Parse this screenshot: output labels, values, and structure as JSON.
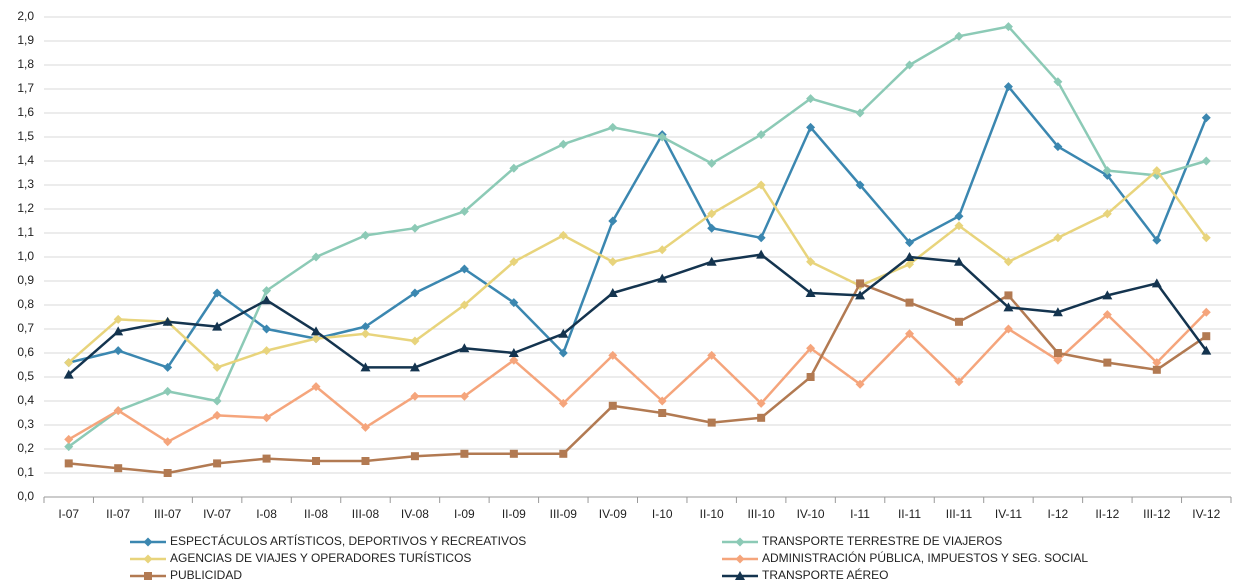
{
  "chart_data": {
    "type": "line",
    "categories": [
      "I-07",
      "II-07",
      "III-07",
      "IV-07",
      "I-08",
      "II-08",
      "III-08",
      "IV-08",
      "I-09",
      "II-09",
      "III-09",
      "IV-09",
      "I-10",
      "II-10",
      "III-10",
      "IV-10",
      "I-11",
      "II-11",
      "III-11",
      "IV-11",
      "I-12",
      "II-12",
      "III-12",
      "IV-12"
    ],
    "series": [
      {
        "name": "ESPECTÁCULOS ARTÍSTICOS, DEPORTIVOS Y RECREATIVOS",
        "color": "#3b87b0",
        "marker": "diamond",
        "values": [
          0.56,
          0.61,
          0.54,
          0.85,
          0.7,
          0.66,
          0.71,
          0.85,
          0.95,
          0.81,
          0.6,
          1.15,
          1.51,
          1.12,
          1.08,
          1.54,
          1.3,
          1.06,
          1.17,
          1.71,
          1.46,
          1.34,
          1.07,
          1.58
        ]
      },
      {
        "name": "TRANSPORTE TERRESTRE DE VIAJEROS",
        "color": "#8ccab6",
        "marker": "diamond",
        "values": [
          0.21,
          0.36,
          0.44,
          0.4,
          0.86,
          1.0,
          1.09,
          1.12,
          1.19,
          1.37,
          1.47,
          1.54,
          1.5,
          1.39,
          1.51,
          1.66,
          1.6,
          1.8,
          1.92,
          1.96,
          1.73,
          1.36,
          1.34,
          1.4
        ]
      },
      {
        "name": "AGENCIAS DE VIAJES Y OPERADORES TURÍSTICOS",
        "color": "#e8d47c",
        "marker": "diamond",
        "values": [
          0.56,
          0.74,
          0.73,
          0.54,
          0.61,
          0.66,
          0.68,
          0.65,
          0.8,
          0.98,
          1.09,
          0.98,
          1.03,
          1.18,
          1.3,
          0.98,
          0.88,
          0.97,
          1.13,
          0.98,
          1.08,
          1.18,
          1.36,
          1.08
        ]
      },
      {
        "name": "ADMINISTRACIÓN PÚBLICA, IMPUESTOS Y SEG. SOCIAL",
        "color": "#f5a57c",
        "marker": "diamond",
        "values": [
          0.24,
          0.36,
          0.23,
          0.34,
          0.33,
          0.46,
          0.29,
          0.42,
          0.42,
          0.57,
          0.39,
          0.59,
          0.4,
          0.59,
          0.39,
          0.62,
          0.47,
          0.68,
          0.48,
          0.7,
          0.57,
          0.76,
          0.56,
          0.77
        ]
      },
      {
        "name": "PUBLICIDAD",
        "color": "#b27a52",
        "marker": "square",
        "values": [
          0.14,
          0.12,
          0.1,
          0.14,
          0.16,
          0.15,
          0.15,
          0.17,
          0.18,
          0.18,
          0.18,
          0.38,
          0.35,
          0.31,
          0.33,
          0.5,
          0.89,
          0.81,
          0.73,
          0.84,
          0.6,
          0.56,
          0.53,
          0.67
        ]
      },
      {
        "name": "TRANSPORTE AÉREO",
        "color": "#14344f",
        "marker": "triangle",
        "values": [
          0.51,
          0.69,
          0.73,
          0.71,
          0.82,
          0.69,
          0.54,
          0.54,
          0.62,
          0.6,
          0.68,
          0.85,
          0.91,
          0.98,
          1.01,
          0.85,
          0.84,
          1.0,
          0.98,
          0.79,
          0.77,
          0.84,
          0.89,
          0.61
        ]
      }
    ],
    "ylim": [
      0,
      2.0
    ],
    "yticks": [
      {
        "value": 0,
        "label": "0,0"
      },
      {
        "value": 0.1,
        "label": "0,1"
      },
      {
        "value": 0.2,
        "label": "0,2"
      },
      {
        "value": 0.3,
        "label": "0,3"
      },
      {
        "value": 0.4,
        "label": "0,4"
      },
      {
        "value": 0.5,
        "label": "0,5"
      },
      {
        "value": 0.6,
        "label": "0,6"
      },
      {
        "value": 0.7,
        "label": "0,7"
      },
      {
        "value": 0.8,
        "label": "0,8"
      },
      {
        "value": 0.9,
        "label": "0,9"
      },
      {
        "value": 1.0,
        "label": "1,0"
      },
      {
        "value": 1.1,
        "label": "1,1"
      },
      {
        "value": 1.2,
        "label": "1,2"
      },
      {
        "value": 1.3,
        "label": "1,3"
      },
      {
        "value": 1.4,
        "label": "1,4"
      },
      {
        "value": 1.5,
        "label": "1,5"
      },
      {
        "value": 1.6,
        "label": "1,6"
      },
      {
        "value": 1.7,
        "label": "1,7"
      },
      {
        "value": 1.8,
        "label": "1,8"
      },
      {
        "value": 1.9,
        "label": "1,9"
      },
      {
        "value": 2.0,
        "label": "2,0"
      }
    ],
    "grid": true
  }
}
